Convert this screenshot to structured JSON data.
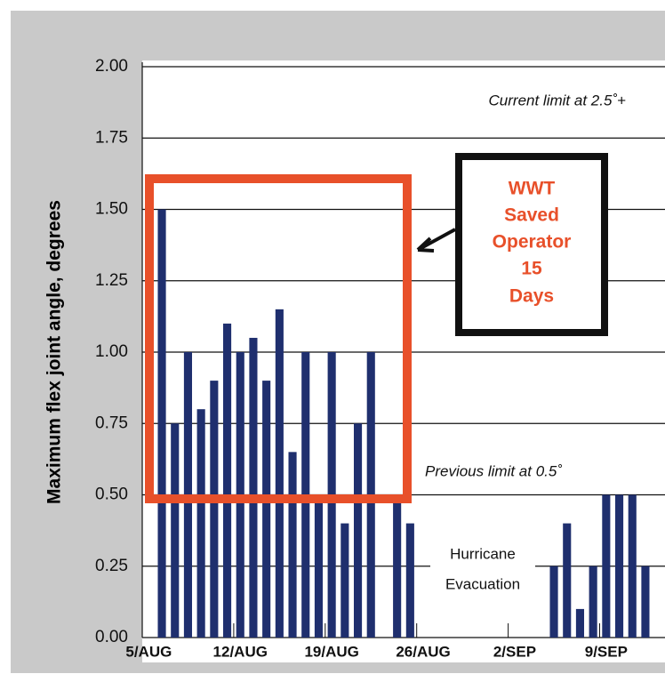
{
  "chart_data": {
    "type": "bar",
    "ylabel": "Maximum flex joint angle, degrees",
    "color": "#1f2f6e",
    "grid": true,
    "ylim": [
      0,
      2
    ],
    "yticks": [
      {
        "value": 0,
        "label": "0.00"
      },
      {
        "value": 0.25,
        "label": "0.25"
      },
      {
        "value": 0.5,
        "label": "0.50"
      },
      {
        "value": 0.75,
        "label": "0.75"
      },
      {
        "value": 1,
        "label": "1.00"
      },
      {
        "value": 1.25,
        "label": "1.25"
      },
      {
        "value": 1.5,
        "label": "1.50"
      },
      {
        "value": 1.75,
        "label": "1.75"
      },
      {
        "value": 2,
        "label": "2.00"
      }
    ],
    "categories": [
      "5/AUG",
      null,
      null,
      null,
      null,
      null,
      null,
      "12/AUG",
      null,
      null,
      null,
      null,
      null,
      null,
      "19/AUG",
      null,
      null,
      null,
      null,
      null,
      null,
      "26/AUG",
      null,
      null,
      null,
      null,
      null,
      null,
      "2/SEP",
      null,
      null,
      null,
      null,
      null,
      null,
      "9/SEP",
      null,
      null,
      null,
      null
    ],
    "values": [
      null,
      1.5,
      0.75,
      1.0,
      0.8,
      0.9,
      1.1,
      1.0,
      1.05,
      0.9,
      1.15,
      0.65,
      1.0,
      0.5,
      1.0,
      0.4,
      0.75,
      1.0,
      null,
      0.5,
      0.4,
      null,
      null,
      null,
      null,
      null,
      null,
      null,
      null,
      null,
      null,
      0.25,
      0.4,
      0.1,
      0.25,
      0.5,
      0.5,
      0.5,
      0.25,
      null
    ],
    "annotations": {
      "current_limit": "Current limit at 2.5˚+",
      "previous_limit": "Previous limit at 0.5˚",
      "hurricane": [
        "Hurricane",
        "Evacuation"
      ],
      "callout": [
        "WWT",
        "Saved",
        "Operator",
        "15",
        "Days"
      ]
    }
  }
}
